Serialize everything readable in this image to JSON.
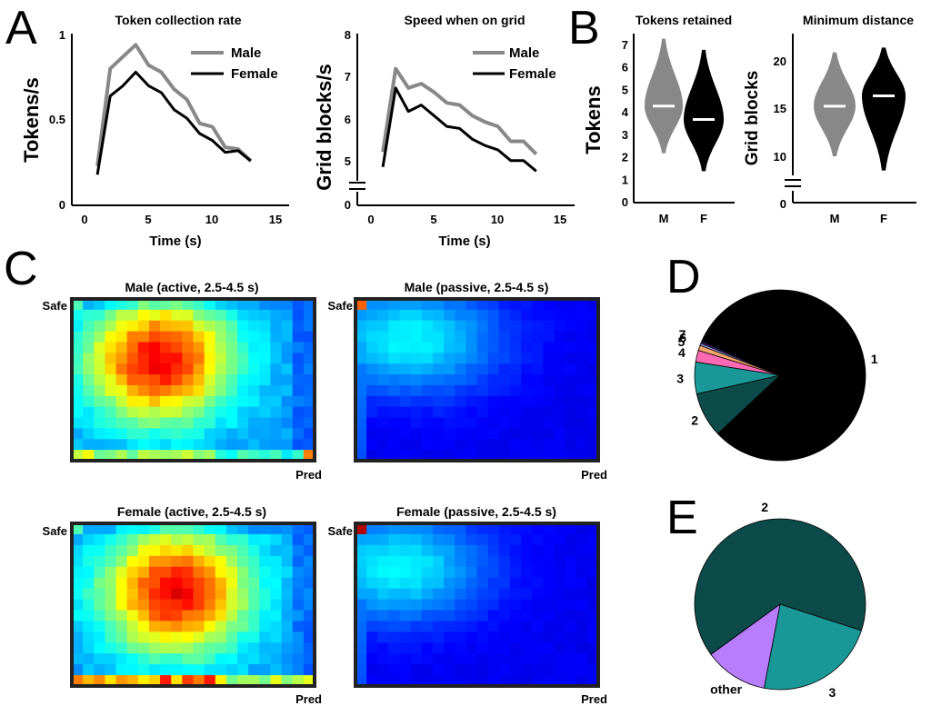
{
  "panels": {
    "A": "A",
    "B": "B",
    "C": "C",
    "D": "D",
    "E": "E"
  },
  "chart_data": [
    {
      "id": "collection_rate",
      "type": "line",
      "title": "Token collection rate",
      "xlabel": "Time (s)",
      "ylabel": "Tokens/s",
      "xlim": [
        -1,
        16
      ],
      "ylim": [
        0,
        1
      ],
      "xticks": [
        "0",
        "5",
        "10",
        "15"
      ],
      "yticks": [
        "0",
        "0.5",
        "1"
      ],
      "x": [
        1,
        2,
        3,
        4,
        5,
        6,
        7,
        8,
        9,
        10,
        11,
        12,
        13
      ],
      "series": [
        {
          "name": "Male",
          "color": "#888888",
          "values": [
            0.23,
            0.8,
            0.87,
            0.94,
            0.82,
            0.78,
            0.68,
            0.62,
            0.48,
            0.46,
            0.34,
            0.33,
            0.26
          ]
        },
        {
          "name": "Female",
          "color": "#000000",
          "values": [
            0.18,
            0.64,
            0.7,
            0.78,
            0.7,
            0.66,
            0.56,
            0.51,
            0.42,
            0.38,
            0.31,
            0.32,
            0.26
          ]
        }
      ],
      "legend_position": "top-right"
    },
    {
      "id": "speed_on_grid",
      "type": "line",
      "title": "Speed when on grid",
      "xlabel": "Time (s)",
      "ylabel": "Grid blocks/s",
      "xlim": [
        -1,
        16
      ],
      "ylim": [
        4,
        8
      ],
      "axis_break": true,
      "xticks": [
        "0",
        "5",
        "10",
        "15"
      ],
      "yticks": [
        "0",
        "5",
        "6",
        "7",
        "8"
      ],
      "x": [
        1,
        2,
        3,
        4,
        5,
        6,
        7,
        8,
        9,
        10,
        11,
        12,
        13
      ],
      "series": [
        {
          "name": "Male",
          "color": "#888888",
          "values": [
            5.25,
            7.2,
            6.75,
            6.85,
            6.65,
            6.4,
            6.35,
            6.1,
            5.95,
            5.85,
            5.5,
            5.5,
            5.2
          ]
        },
        {
          "name": "Female",
          "color": "#000000",
          "values": [
            4.9,
            6.75,
            6.2,
            6.35,
            6.1,
            5.85,
            5.8,
            5.55,
            5.4,
            5.3,
            5.05,
            5.05,
            4.8
          ]
        }
      ],
      "legend_position": "top-right"
    },
    {
      "id": "tokens_retained",
      "type": "violin",
      "title": "Tokens retained",
      "ylabel": "Tokens",
      "categories": [
        "M",
        "F"
      ],
      "ylim": [
        0,
        7.5
      ],
      "yticks": [
        "0",
        "1",
        "2",
        "3",
        "4",
        "5",
        "6",
        "7"
      ],
      "medians": [
        4.3,
        3.7
      ],
      "ranges": [
        [
          2.2,
          7.3
        ],
        [
          1.4,
          6.8
        ]
      ],
      "colors": [
        "#888888",
        "#000000"
      ]
    },
    {
      "id": "minimum_distance",
      "type": "violin",
      "title": "Minimum distance",
      "ylabel": "Grid blocks",
      "categories": [
        "M",
        "F"
      ],
      "ylim": [
        7,
        23
      ],
      "axis_break": true,
      "yticks": [
        "0",
        "10",
        "15",
        "20"
      ],
      "medians": [
        15.3,
        16.4
      ],
      "ranges": [
        [
          10.0,
          21.0
        ],
        [
          8.5,
          21.5
        ]
      ],
      "colors": [
        "#888888",
        "#000000"
      ]
    },
    {
      "id": "heatmaps",
      "type": "heatmap",
      "corner_labels": {
        "safe": "Safe",
        "pred": "Pred"
      },
      "maps": [
        {
          "title": "Male (active, 2.5-4.5 s)",
          "mode": "active",
          "peak": [
            0.36,
            0.38
          ],
          "corner_pred": 0.75,
          "bottom_row": 0.55
        },
        {
          "title": "Male (passive, 2.5-4.5 s)",
          "mode": "passive",
          "peak": [
            0.22,
            0.25
          ],
          "corner_safe": 0.78
        },
        {
          "title": "Female (active, 2.5-4.5 s)",
          "mode": "active",
          "peak": [
            0.43,
            0.42
          ],
          "corner_pred": 0.6,
          "bottom_row": 0.75
        },
        {
          "title": "Female (passive, 2.5-4.5 s)",
          "mode": "passive",
          "peak": [
            0.17,
            0.27
          ],
          "corner_safe": 0.95
        }
      ]
    },
    {
      "id": "pie_D",
      "type": "pie",
      "labels": [
        "1",
        "2",
        "3",
        "4",
        "5",
        "6",
        "7"
      ],
      "values": [
        81.5,
        8.5,
        6.0,
        2.2,
        1.0,
        0.4,
        0.4
      ],
      "colors": [
        "#000000",
        "#0d4a4a",
        "#1a9898",
        "#ff69b4",
        "#f4a56a",
        "#9aa8ff",
        "#3a1a6a"
      ]
    },
    {
      "id": "pie_E",
      "type": "pie",
      "labels": [
        "2",
        "3",
        "other"
      ],
      "values": [
        65.0,
        23.0,
        12.0
      ],
      "colors": [
        "#0d4a4a",
        "#1a9898",
        "#b77dfc"
      ]
    }
  ]
}
